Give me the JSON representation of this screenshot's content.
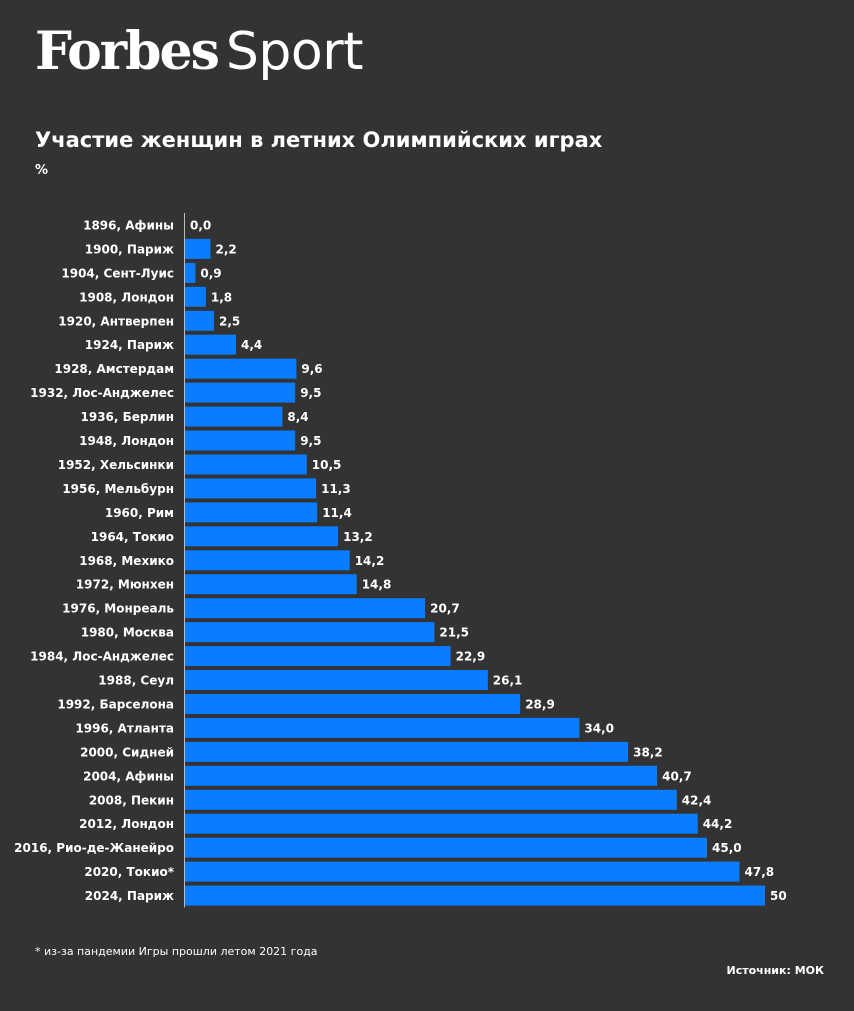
{
  "logo": {
    "forbes": "Forbes",
    "sport": "Sport"
  },
  "title": "Участие женщин в летних Олимпийских играх",
  "unit": "%",
  "footnote": "* из-за пандемии Игры прошли летом 2021 года",
  "source": "Источник: МОК",
  "colors": {
    "background": "#333333",
    "bar": "#0a7cff",
    "text": "#ffffff",
    "axis": "#bbbbbb"
  },
  "chart_data": {
    "type": "bar",
    "orientation": "horizontal",
    "categories": [
      "1896, Афины",
      "1900, Париж",
      "1904, Сент-Луис",
      "1908, Лондон",
      "1920, Антверпен",
      "1924, Париж",
      "1928, Амстердам",
      "1932, Лос-Анджелес",
      "1936, Берлин",
      "1948, Лондон",
      "1952, Хельсинки",
      "1956, Мельбурн",
      "1960, Рим",
      "1964, Токио",
      "1968, Мехико",
      "1972, Мюнхен",
      "1976, Монреаль",
      "1980, Москва",
      "1984, Лос-Анджелес",
      "1988, Сеул",
      "1992, Барселона",
      "1996, Атланта",
      "2000, Сидней",
      "2004, Афины",
      "2008, Пекин",
      "2012, Лондон",
      "2016, Рио-де-Жанейро",
      "2020, Токио*",
      "2024, Париж"
    ],
    "values": [
      0.0,
      2.2,
      0.9,
      1.8,
      2.5,
      4.4,
      9.6,
      9.5,
      8.4,
      9.5,
      10.5,
      11.3,
      11.4,
      13.2,
      14.2,
      14.8,
      20.7,
      21.5,
      22.9,
      26.1,
      28.9,
      34.0,
      38.2,
      40.7,
      42.4,
      44.2,
      45.0,
      47.8,
      50
    ],
    "value_labels": [
      "0,0",
      "2,2",
      "0,9",
      "1,8",
      "2,5",
      "4,4",
      "9,6",
      "9,5",
      "8,4",
      "9,5",
      "10,5",
      "11,3",
      "11,4",
      "13,2",
      "14,2",
      "14,8",
      "20,7",
      "21,5",
      "22,9",
      "26,1",
      "28,9",
      "34,0",
      "38,2",
      "40,7",
      "42,4",
      "44,2",
      "45,0",
      "47,8",
      "50"
    ],
    "xlim": [
      0,
      50
    ],
    "grid": false
  }
}
